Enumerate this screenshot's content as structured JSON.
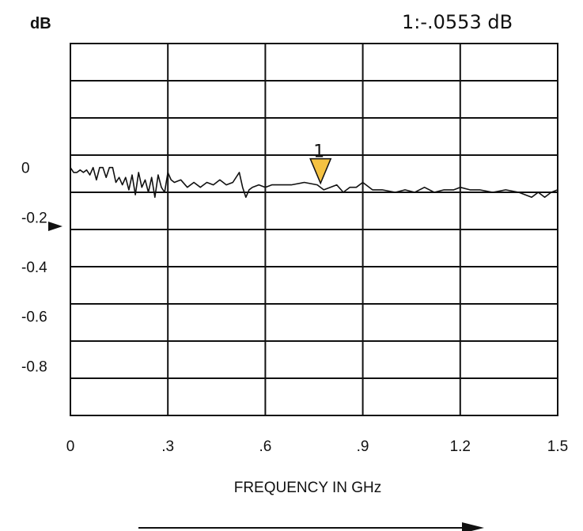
{
  "chart_data": {
    "type": "line",
    "ylabel": "dB",
    "xlabel": "FREQUENCY IN GHz",
    "marker_readout": "1:-.0553 dB",
    "x_ticks": [
      "0",
      ".3",
      ".6",
      ".9",
      "1.2",
      "1.5"
    ],
    "y_ticks": [
      "0",
      "-0.2",
      "-0.4",
      "-0.6",
      "-0.8"
    ],
    "xlim": [
      0,
      1.5
    ],
    "ylim": [
      -1.0,
      0.5
    ],
    "grid": true,
    "reference_level": 0,
    "series": [
      {
        "x": [
          0.0,
          0.01,
          0.02,
          0.03,
          0.04,
          0.05,
          0.06,
          0.07,
          0.08,
          0.09,
          0.1,
          0.11,
          0.12,
          0.13,
          0.14,
          0.15,
          0.16,
          0.17,
          0.18,
          0.19,
          0.2,
          0.21,
          0.22,
          0.23,
          0.24,
          0.25,
          0.26,
          0.27,
          0.28,
          0.29,
          0.3,
          0.31,
          0.32,
          0.34,
          0.36,
          0.38,
          0.4,
          0.42,
          0.44,
          0.46,
          0.48,
          0.5,
          0.52,
          0.53,
          0.54,
          0.55,
          0.56,
          0.58,
          0.6,
          0.62,
          0.65,
          0.68,
          0.72,
          0.76,
          0.78,
          0.8,
          0.82,
          0.84,
          0.86,
          0.88,
          0.9,
          0.93,
          0.96,
          1.0,
          1.03,
          1.06,
          1.09,
          1.12,
          1.15,
          1.18,
          1.2,
          1.23,
          1.26,
          1.3,
          1.34,
          1.38,
          1.4,
          1.42,
          1.44,
          1.46,
          1.48,
          1.5
        ],
        "y": [
          0.0,
          -0.02,
          -0.02,
          -0.01,
          -0.02,
          -0.01,
          -0.03,
          0.0,
          -0.05,
          0.0,
          0.0,
          -0.04,
          0.0,
          0.0,
          -0.06,
          -0.04,
          -0.07,
          -0.04,
          -0.09,
          -0.03,
          -0.11,
          -0.02,
          -0.08,
          -0.05,
          -0.1,
          -0.04,
          -0.12,
          -0.03,
          -0.08,
          -0.1,
          -0.02,
          -0.05,
          -0.06,
          -0.05,
          -0.08,
          -0.06,
          -0.08,
          -0.06,
          -0.07,
          -0.05,
          -0.07,
          -0.06,
          -0.02,
          -0.08,
          -0.12,
          -0.09,
          -0.08,
          -0.07,
          -0.08,
          -0.07,
          -0.07,
          -0.07,
          -0.06,
          -0.07,
          -0.09,
          -0.08,
          -0.07,
          -0.1,
          -0.08,
          -0.08,
          -0.06,
          -0.09,
          -0.09,
          -0.1,
          -0.09,
          -0.1,
          -0.08,
          -0.1,
          -0.09,
          -0.09,
          -0.08,
          -0.09,
          -0.09,
          -0.1,
          -0.09,
          -0.1,
          -0.11,
          -0.12,
          -0.1,
          -0.12,
          -0.1,
          -0.09
        ]
      }
    ],
    "marker": {
      "label": "1",
      "x": 0.77,
      "color": "#f5c242"
    }
  }
}
